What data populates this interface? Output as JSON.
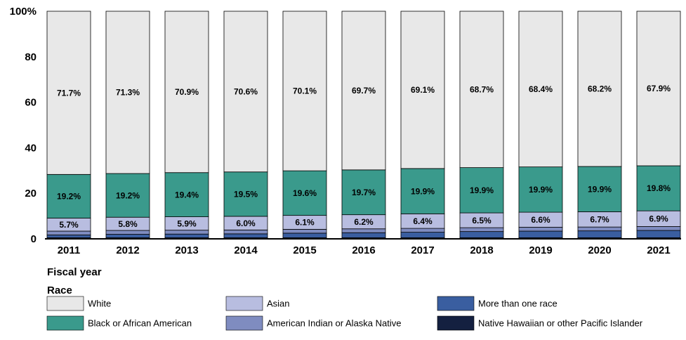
{
  "chart_data": {
    "type": "stacked_bar",
    "x_label": "Fiscal year",
    "legend_title": "Race",
    "categories": [
      "2011",
      "2012",
      "2013",
      "2014",
      "2015",
      "2016",
      "2017",
      "2018",
      "2019",
      "2020",
      "2021"
    ],
    "ylim": [
      0,
      100
    ],
    "yticks": [
      0,
      20,
      40,
      60,
      80,
      {
        "value": 100,
        "label": "100%"
      }
    ],
    "series": [
      {
        "name": "Native Hawaiian or other Pacific Islander",
        "color": "#142040",
        "values": [
          0.5,
          0.5,
          0.5,
          0.5,
          0.5,
          0.5,
          0.5,
          0.5,
          0.5,
          0.5,
          0.5
        ]
      },
      {
        "name": "More than one race",
        "color": "#3a5ea0",
        "values": [
          1.2,
          1.5,
          1.6,
          1.7,
          2.0,
          2.2,
          2.4,
          2.7,
          2.9,
          3.0,
          3.2
        ]
      },
      {
        "name": "American Indian or Alaska Native",
        "color": "#7f8cc0",
        "values": [
          1.7,
          1.7,
          1.7,
          1.7,
          1.7,
          1.7,
          1.7,
          1.7,
          1.7,
          1.7,
          1.7
        ]
      },
      {
        "name": "Asian",
        "color": "#b8bde0",
        "values": [
          5.7,
          5.8,
          5.9,
          6.0,
          6.1,
          6.2,
          6.4,
          6.5,
          6.6,
          6.7,
          6.9
        ],
        "value_labels": [
          "5.7%",
          "5.8%",
          "5.9%",
          "6.0%",
          "6.1%",
          "6.2%",
          "6.4%",
          "6.5%",
          "6.6%",
          "6.7%",
          "6.9%"
        ]
      },
      {
        "name": "Black or African American",
        "color": "#3a9a8c",
        "values": [
          19.2,
          19.2,
          19.4,
          19.5,
          19.6,
          19.7,
          19.9,
          19.9,
          19.9,
          19.9,
          19.8
        ],
        "value_labels": [
          "19.2%",
          "19.2%",
          "19.4%",
          "19.5%",
          "19.6%",
          "19.7%",
          "19.9%",
          "19.9%",
          "19.9%",
          "19.9%",
          "19.8%"
        ]
      },
      {
        "name": "White",
        "color": "#e8e8e8",
        "values": [
          71.7,
          71.3,
          70.9,
          70.6,
          70.1,
          69.7,
          69.1,
          68.7,
          68.4,
          68.2,
          67.9
        ],
        "value_labels": [
          "71.7%",
          "71.3%",
          "70.9%",
          "70.6%",
          "70.1%",
          "69.7%",
          "69.1%",
          "68.7%",
          "68.4%",
          "68.2%",
          "67.9%"
        ]
      }
    ]
  }
}
